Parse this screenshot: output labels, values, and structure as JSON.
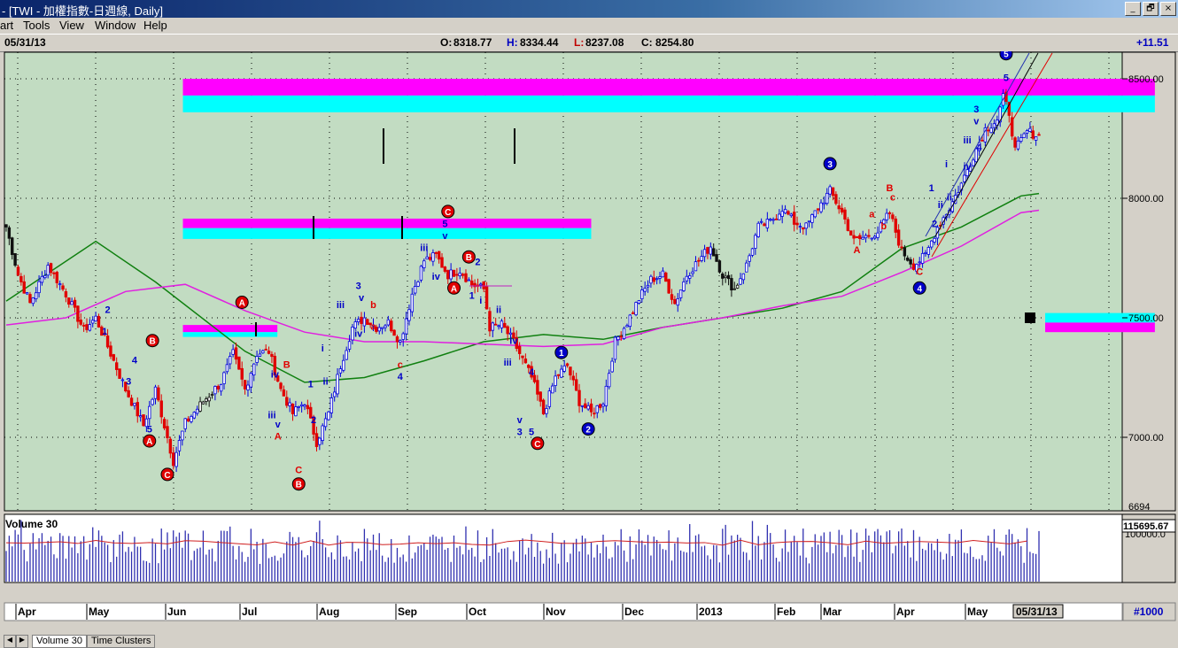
{
  "window": {
    "title": "- [TWI - 加權指數-日週線, Daily]",
    "btn_min": "_",
    "btn_max": "🗗",
    "btn_close": "×"
  },
  "menu": [
    "art",
    "Tools",
    "View",
    "Window",
    "Help"
  ],
  "info": {
    "date": "05/31/13",
    "open_label": "O:",
    "open": "8318.77",
    "high_label": "H:",
    "high": "8334.44",
    "low_label": "L:",
    "low": "8237.08",
    "close_label": "C:",
    "close": "8254.80",
    "change": "+11.51"
  },
  "colors": {
    "plot_bg": "#c2dcc2",
    "up": "#0000e0",
    "down": "#e00000",
    "ma_green": "#108010",
    "ma_magenta": "#e020e0",
    "zone_magenta": "#ff00ff",
    "zone_cyan": "#00ffff",
    "volume": "#3030b0"
  },
  "price_axis": {
    "ticks": [
      "8500.00",
      "8000.00",
      "7500.00",
      "7000.00"
    ],
    "bottom_label": "6694"
  },
  "volume_panel": {
    "title": "Volume 30",
    "last": "115695.67",
    "tick": "100000.0"
  },
  "tabs": [
    "Volume 30",
    "Time Clusters"
  ],
  "date_axis": {
    "months": [
      "Apr",
      "May",
      "Jun",
      "Jul",
      "Aug",
      "Sep",
      "Oct",
      "Nov",
      "Dec",
      "2013",
      "Feb",
      "Mar",
      "Apr",
      "May"
    ],
    "current": "05/31/13",
    "bar_count": "#1000"
  },
  "chart_data": {
    "type": "candlestick",
    "title": "TWI - 加權指數-日週線, Daily",
    "ylim": [
      6694,
      8620
    ],
    "grid": true,
    "waypoints": [
      [
        0,
        7880
      ],
      [
        4,
        7680
      ],
      [
        8,
        7560
      ],
      [
        14,
        7720
      ],
      [
        20,
        7600
      ],
      [
        26,
        7450
      ],
      [
        30,
        7500
      ],
      [
        34,
        7380
      ],
      [
        40,
        7200
      ],
      [
        46,
        7050
      ],
      [
        50,
        7200
      ],
      [
        54,
        7000
      ],
      [
        56,
        6900
      ],
      [
        60,
        7060
      ],
      [
        66,
        7150
      ],
      [
        72,
        7230
      ],
      [
        76,
        7350
      ],
      [
        80,
        7200
      ],
      [
        84,
        7350
      ],
      [
        88,
        7360
      ],
      [
        92,
        7200
      ],
      [
        96,
        7100
      ],
      [
        100,
        7150
      ],
      [
        104,
        6980
      ],
      [
        108,
        7100
      ],
      [
        112,
        7300
      ],
      [
        116,
        7460
      ],
      [
        120,
        7500
      ],
      [
        124,
        7460
      ],
      [
        128,
        7480
      ],
      [
        132,
        7400
      ],
      [
        136,
        7600
      ],
      [
        140,
        7740
      ],
      [
        144,
        7760
      ],
      [
        148,
        7680
      ],
      [
        152,
        7700
      ],
      [
        156,
        7640
      ],
      [
        160,
        7620
      ],
      [
        162,
        7460
      ],
      [
        166,
        7470
      ],
      [
        170,
        7400
      ],
      [
        176,
        7250
      ],
      [
        180,
        7100
      ],
      [
        184,
        7250
      ],
      [
        188,
        7300
      ],
      [
        192,
        7150
      ],
      [
        196,
        7100
      ],
      [
        200,
        7150
      ],
      [
        204,
        7400
      ],
      [
        208,
        7480
      ],
      [
        212,
        7580
      ],
      [
        216,
        7660
      ],
      [
        220,
        7680
      ],
      [
        224,
        7560
      ],
      [
        228,
        7680
      ],
      [
        232,
        7740
      ],
      [
        236,
        7800
      ],
      [
        240,
        7680
      ],
      [
        244,
        7620
      ],
      [
        248,
        7720
      ],
      [
        252,
        7880
      ],
      [
        256,
        7900
      ],
      [
        260,
        7960
      ],
      [
        264,
        7900
      ],
      [
        268,
        7880
      ],
      [
        272,
        7960
      ],
      [
        276,
        8030
      ],
      [
        280,
        7940
      ],
      [
        284,
        7820
      ],
      [
        288,
        7840
      ],
      [
        292,
        7860
      ],
      [
        296,
        7940
      ],
      [
        300,
        7780
      ],
      [
        304,
        7720
      ],
      [
        308,
        7760
      ],
      [
        312,
        7880
      ],
      [
        316,
        7960
      ],
      [
        320,
        8060
      ],
      [
        324,
        8180
      ],
      [
        328,
        8290
      ],
      [
        332,
        8330
      ],
      [
        334,
        8420
      ],
      [
        336,
        8360
      ],
      [
        338,
        8200
      ],
      [
        342,
        8280
      ],
      [
        346,
        8260
      ]
    ],
    "moving_averages": [
      {
        "name": "green",
        "points": [
          [
            0,
            7570
          ],
          [
            30,
            7820
          ],
          [
            50,
            7650
          ],
          [
            80,
            7360
          ],
          [
            100,
            7230
          ],
          [
            120,
            7250
          ],
          [
            140,
            7320
          ],
          [
            160,
            7400
          ],
          [
            180,
            7430
          ],
          [
            200,
            7410
          ],
          [
            220,
            7460
          ],
          [
            240,
            7500
          ],
          [
            260,
            7540
          ],
          [
            280,
            7610
          ],
          [
            300,
            7790
          ],
          [
            320,
            7880
          ],
          [
            340,
            8010
          ],
          [
            346,
            8020
          ]
        ]
      },
      {
        "name": "magenta",
        "points": [
          [
            0,
            7470
          ],
          [
            20,
            7500
          ],
          [
            40,
            7610
          ],
          [
            60,
            7640
          ],
          [
            80,
            7530
          ],
          [
            100,
            7440
          ],
          [
            120,
            7400
          ],
          [
            140,
            7400
          ],
          [
            160,
            7390
          ],
          [
            180,
            7380
          ],
          [
            200,
            7390
          ],
          [
            220,
            7460
          ],
          [
            240,
            7500
          ],
          [
            260,
            7550
          ],
          [
            280,
            7590
          ],
          [
            300,
            7690
          ],
          [
            320,
            7800
          ],
          [
            340,
            7940
          ],
          [
            346,
            7950
          ]
        ]
      }
    ],
    "zones": [
      {
        "x0": 58,
        "x1": 377,
        "y0": 8500,
        "y1": 8430,
        "color": "magenta"
      },
      {
        "x0": 58,
        "x1": 377,
        "y0": 8430,
        "y1": 8360,
        "color": "cyan"
      },
      {
        "x0": 58,
        "x1": 192,
        "y0": 7915,
        "y1": 7875,
        "color": "magenta"
      },
      {
        "x0": 58,
        "x1": 192,
        "y0": 7875,
        "y1": 7830,
        "color": "cyan"
      },
      {
        "x0": 58,
        "x1": 89,
        "y0": 7470,
        "y1": 7440,
        "color": "magenta"
      },
      {
        "x0": 58,
        "x1": 89,
        "y0": 7440,
        "y1": 7420,
        "color": "cyan"
      },
      {
        "x0": 341,
        "x1": 377,
        "y0": 7520,
        "y1": 7480,
        "color": "cyan"
      },
      {
        "x0": 341,
        "x1": 377,
        "y0": 7480,
        "y1": 7440,
        "color": "magenta"
      }
    ],
    "wave_labels": [
      {
        "t": 34,
        "y": 7520,
        "label": "2",
        "c": "blue"
      },
      {
        "t": 33,
        "y": 7430,
        "label": "1",
        "c": "blue"
      },
      {
        "t": 43,
        "y": 7310,
        "label": "4",
        "c": "blue"
      },
      {
        "t": 41,
        "y": 7220,
        "label": "3",
        "c": "blue"
      },
      {
        "t": 48,
        "y": 7020,
        "label": "5",
        "c": "blue"
      },
      {
        "t": 49,
        "y": 7390,
        "label": "B",
        "c": "red",
        "circle": true
      },
      {
        "t": 48,
        "y": 6970,
        "label": "A",
        "c": "red",
        "circle": true
      },
      {
        "t": 54,
        "y": 6830,
        "label": "C",
        "c": "red",
        "circle": true
      },
      {
        "t": 79,
        "y": 7550,
        "label": "A",
        "c": "red",
        "circle": true
      },
      {
        "t": 90,
        "y": 7250,
        "label": "iv",
        "c": "blue"
      },
      {
        "t": 89,
        "y": 7080,
        "label": "iii",
        "c": "blue"
      },
      {
        "t": 91,
        "y": 7040,
        "label": "v",
        "c": "blue"
      },
      {
        "t": 91,
        "y": 6990,
        "label": "A",
        "c": "red"
      },
      {
        "t": 94,
        "y": 7290,
        "label": "B",
        "c": "red"
      },
      {
        "t": 98,
        "y": 6850,
        "label": "C",
        "c": "red"
      },
      {
        "t": 98,
        "y": 6790,
        "label": "B",
        "c": "red",
        "circle": true
      },
      {
        "t": 102,
        "y": 7210,
        "label": "1",
        "c": "blue"
      },
      {
        "t": 103,
        "y": 7060,
        "label": "2",
        "c": "blue"
      },
      {
        "t": 107,
        "y": 7220,
        "label": "ii",
        "c": "blue"
      },
      {
        "t": 106,
        "y": 7360,
        "label": "i",
        "c": "blue"
      },
      {
        "t": 112,
        "y": 7540,
        "label": "iii",
        "c": "blue"
      },
      {
        "t": 118,
        "y": 7620,
        "label": "3",
        "c": "blue"
      },
      {
        "t": 119,
        "y": 7570,
        "label": "v",
        "c": "blue"
      },
      {
        "t": 123,
        "y": 7540,
        "label": "b",
        "c": "red"
      },
      {
        "t": 118,
        "y": 7420,
        "label": "iv",
        "c": "blue"
      },
      {
        "t": 123,
        "y": 7450,
        "label": "a",
        "c": "red"
      },
      {
        "t": 132,
        "y": 7290,
        "label": "c",
        "c": "red"
      },
      {
        "t": 132,
        "y": 7240,
        "label": "4",
        "c": "blue"
      },
      {
        "t": 140,
        "y": 7780,
        "label": "iii",
        "c": "blue"
      },
      {
        "t": 147,
        "y": 7880,
        "label": "5",
        "c": "blue"
      },
      {
        "t": 147,
        "y": 7830,
        "label": "v",
        "c": "blue"
      },
      {
        "t": 148,
        "y": 7930,
        "label": "C",
        "c": "red",
        "circle": true
      },
      {
        "t": 144,
        "y": 7660,
        "label": "iv",
        "c": "blue"
      },
      {
        "t": 155,
        "y": 7740,
        "label": "B",
        "c": "red",
        "circle": true
      },
      {
        "t": 158,
        "y": 7720,
        "label": "2",
        "c": "blue"
      },
      {
        "t": 150,
        "y": 7610,
        "label": "A",
        "c": "red",
        "circle": true
      },
      {
        "t": 156,
        "y": 7580,
        "label": "1",
        "c": "blue"
      },
      {
        "t": 159,
        "y": 7560,
        "label": "i",
        "c": "blue"
      },
      {
        "t": 165,
        "y": 7520,
        "label": "ii",
        "c": "blue"
      },
      {
        "t": 170,
        "y": 7390,
        "label": "iv",
        "c": "blue"
      },
      {
        "t": 168,
        "y": 7300,
        "label": "iii",
        "c": "blue"
      },
      {
        "t": 176,
        "y": 7260,
        "label": "4",
        "c": "blue"
      },
      {
        "t": 172,
        "y": 7060,
        "label": "v",
        "c": "blue"
      },
      {
        "t": 172,
        "y": 7010,
        "label": "3",
        "c": "blue"
      },
      {
        "t": 176,
        "y": 7010,
        "label": "5",
        "c": "blue"
      },
      {
        "t": 178,
        "y": 6960,
        "label": "C",
        "c": "red",
        "circle": true
      },
      {
        "t": 186,
        "y": 7340,
        "label": "1",
        "c": "blue",
        "circle": true
      },
      {
        "t": 195,
        "y": 7020,
        "label": "2",
        "c": "blue",
        "circle": true
      },
      {
        "t": 276,
        "y": 8130,
        "label": "3",
        "c": "blue",
        "circle": true
      },
      {
        "t": 296,
        "y": 8030,
        "label": "B",
        "c": "red"
      },
      {
        "t": 297,
        "y": 7990,
        "label": "c",
        "c": "red"
      },
      {
        "t": 290,
        "y": 7920,
        "label": "a",
        "c": "red"
      },
      {
        "t": 294,
        "y": 7870,
        "label": "b",
        "c": "red"
      },
      {
        "t": 285,
        "y": 7770,
        "label": "A",
        "c": "red"
      },
      {
        "t": 306,
        "y": 7680,
        "label": "C",
        "c": "red"
      },
      {
        "t": 306,
        "y": 7610,
        "label": "4",
        "c": "blue",
        "circle": true
      },
      {
        "t": 310,
        "y": 8030,
        "label": "1",
        "c": "blue"
      },
      {
        "t": 313,
        "y": 7960,
        "label": "ii",
        "c": "blue"
      },
      {
        "t": 311,
        "y": 7880,
        "label": "2",
        "c": "blue"
      },
      {
        "t": 315,
        "y": 8130,
        "label": "i",
        "c": "blue"
      },
      {
        "t": 316,
        "y": 7990,
        "label": "ii",
        "c": "blue"
      },
      {
        "t": 322,
        "y": 8230,
        "label": "iii",
        "c": "blue"
      },
      {
        "t": 322,
        "y": 8120,
        "label": "iv",
        "c": "blue"
      },
      {
        "t": 325,
        "y": 8360,
        "label": "3",
        "c": "blue"
      },
      {
        "t": 325,
        "y": 8310,
        "label": "v",
        "c": "blue"
      },
      {
        "t": 326,
        "y": 8200,
        "label": "4",
        "c": "blue"
      },
      {
        "t": 335,
        "y": 8490,
        "label": "5",
        "c": "blue"
      },
      {
        "t": 335,
        "y": 8590,
        "label": "5",
        "c": "blue",
        "circle": true
      }
    ]
  }
}
